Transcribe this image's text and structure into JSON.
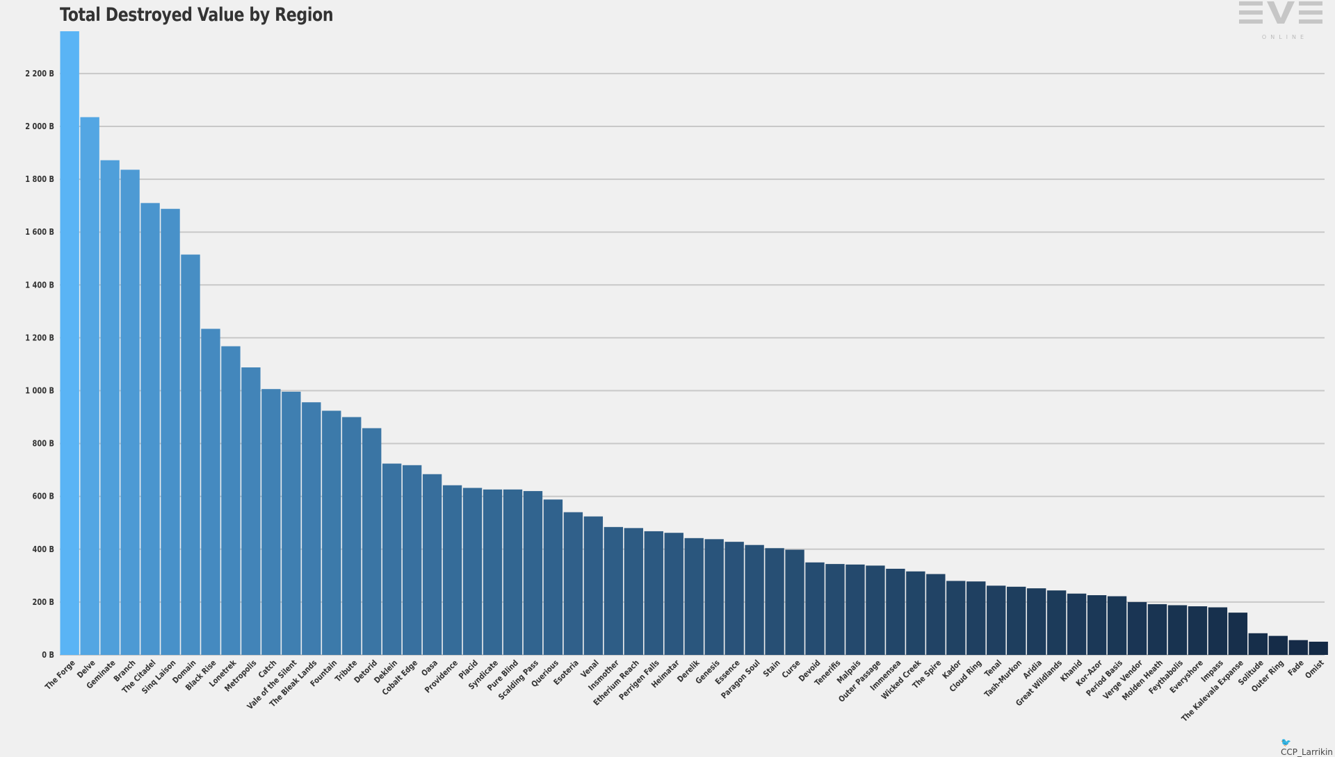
{
  "chart_data": {
    "type": "bar",
    "title": "Total Destroyed Value by Region",
    "xlabel": "",
    "ylabel": "",
    "ylim": [
      0,
      2350
    ],
    "yticks": [
      0,
      200,
      400,
      600,
      800,
      1000,
      1200,
      1400,
      1600,
      1800,
      2000,
      2200
    ],
    "ytick_labels": [
      "0 B",
      "200 B",
      "400 B",
      "600 B",
      "800 B",
      "1 000 B",
      "1 200 B",
      "1 400 B",
      "1 600 B",
      "1 800 B",
      "2 000 B",
      "2 200 B"
    ],
    "grid": true,
    "legend": "none",
    "color_start": "#5ab4f5",
    "color_end": "#142a45",
    "categories": [
      "The Forge",
      "Delve",
      "Geminate",
      "Branch",
      "The Citadel",
      "Sinq Laison",
      "Domain",
      "Black Rise",
      "Lonetrek",
      "Metropolis",
      "Catch",
      "Vale of the Silent",
      "The Bleak Lands",
      "Fountain",
      "Tribute",
      "Detorid",
      "Deklein",
      "Cobalt Edge",
      "Oasa",
      "Providence",
      "Placid",
      "Syndicate",
      "Pure Blind",
      "Scalding Pass",
      "Querious",
      "Esoteria",
      "Venal",
      "Insmother",
      "Etherium Reach",
      "Perrigen Falls",
      "Heimatar",
      "Derelik",
      "Genesis",
      "Essence",
      "Paragon Soul",
      "Stain",
      "Curse",
      "Devoid",
      "Tenerifis",
      "Malpais",
      "Outer Passage",
      "Immensea",
      "Wicked Creek",
      "The Spire",
      "Kador",
      "Cloud Ring",
      "Tenal",
      "Tash-Murkon",
      "Aridia",
      "Great Wildlands",
      "Khanid",
      "Kor-Azor",
      "Period Basis",
      "Verge Vendor",
      "Molden Heath",
      "Feythabolis",
      "Everyshore",
      "Impass",
      "The Kalevala Expanse",
      "Solitude",
      "Outer Ring",
      "Fade",
      "Omist"
    ],
    "values": [
      2360,
      2035,
      1872,
      1836,
      1710,
      1688,
      1515,
      1234,
      1168,
      1088,
      1006,
      996,
      956,
      924,
      900,
      858,
      724,
      718,
      684,
      642,
      632,
      626,
      626,
      620,
      588,
      540,
      524,
      484,
      480,
      468,
      462,
      442,
      438,
      428,
      416,
      404,
      398,
      350,
      344,
      342,
      338,
      326,
      316,
      306,
      280,
      278,
      262,
      258,
      252,
      244,
      232,
      226,
      222,
      200,
      192,
      188,
      184,
      180,
      160,
      82,
      72,
      56,
      50
    ]
  },
  "credit": "CCP_Larrikin",
  "logo": {
    "text": "EVE",
    "subtext": "ONLINE"
  }
}
